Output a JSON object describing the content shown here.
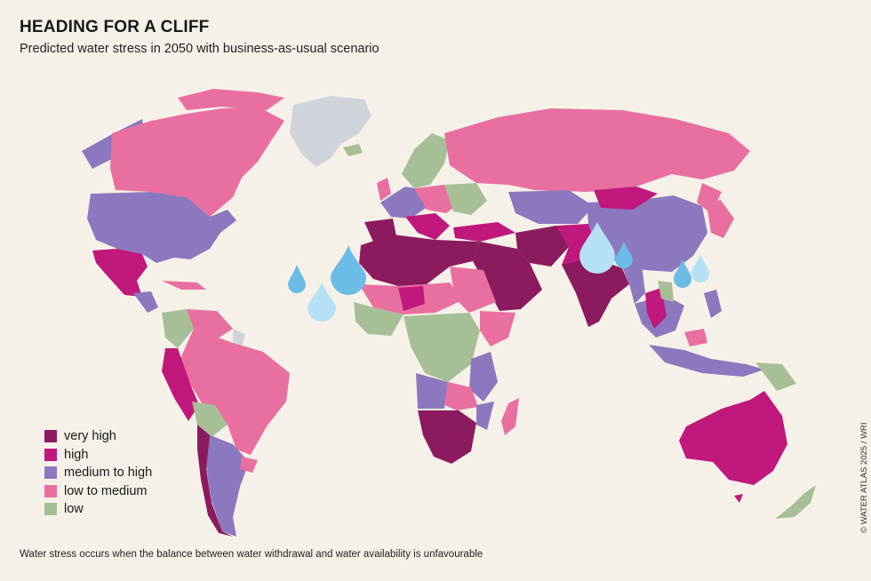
{
  "header": {
    "title": "HEADING FOR A CLIFF",
    "subtitle": "Predicted water stress in 2050 with business-as-usual scenario"
  },
  "legend": {
    "items": [
      {
        "label": "very high",
        "color": "#8c1a5e"
      },
      {
        "label": "high",
        "color": "#c0187d"
      },
      {
        "label": "medium to high",
        "color": "#8c78be"
      },
      {
        "label": "low to medium",
        "color": "#e96fa0"
      },
      {
        "label": "low",
        "color": "#a7bf97"
      }
    ]
  },
  "colors": {
    "background": "#f6f1e8",
    "no_data": "#cfd4da",
    "drop_dark": "#6bbce6",
    "drop_light": "#b6e0f5"
  },
  "footnote": "Water stress occurs when the balance between water withdrawal and water availability is unfavourable",
  "credit": "© WATER ATLAS 2025 / WRI"
}
